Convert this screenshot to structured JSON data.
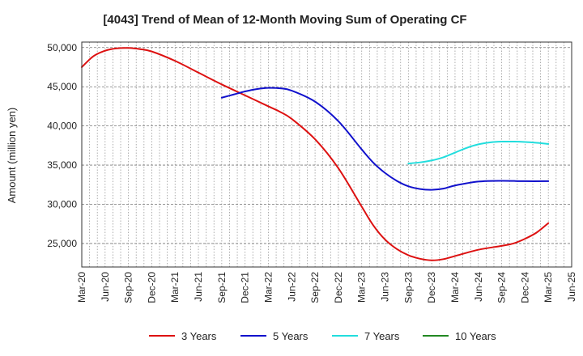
{
  "chart_data": {
    "type": "line",
    "title": "[4043]  Trend of Mean of 12-Month Moving Sum of Operating CF",
    "xlabel": "",
    "ylabel": "Amount (million yen)",
    "ylim": [
      22000,
      50700
    ],
    "yticks": [
      25000,
      30000,
      35000,
      40000,
      45000,
      50000
    ],
    "ytick_labels": [
      "25,000",
      "30,000",
      "35,000",
      "40,000",
      "45,000",
      "50,000"
    ],
    "xtick_labels": [
      "Mar-20",
      "Jun-20",
      "Sep-20",
      "Dec-20",
      "Mar-21",
      "Jun-21",
      "Sep-21",
      "Dec-21",
      "Mar-22",
      "Jun-22",
      "Sep-22",
      "Dec-22",
      "Mar-23",
      "Jun-23",
      "Sep-23",
      "Dec-23",
      "Mar-24",
      "Jun-24",
      "Sep-24",
      "Dec-24",
      "Mar-25",
      "Jun-25"
    ],
    "x_unit": "quarter index (0 = Mar-20)",
    "grid": true,
    "legend_position": "bottom",
    "series": [
      {
        "name": "3 Years",
        "color": "#dd1111",
        "points": [
          [
            0,
            47500
          ],
          [
            0.5,
            48900
          ],
          [
            1,
            49600
          ],
          [
            1.5,
            49900
          ],
          [
            2,
            49950
          ],
          [
            2.5,
            49800
          ],
          [
            3,
            49500
          ],
          [
            4,
            48300
          ],
          [
            5,
            46800
          ],
          [
            6,
            45300
          ],
          [
            7,
            43900
          ],
          [
            8,
            42500
          ],
          [
            8.5,
            41800
          ],
          [
            9,
            40900
          ],
          [
            10,
            38300
          ],
          [
            11,
            34600
          ],
          [
            12,
            29700
          ],
          [
            12.5,
            27300
          ],
          [
            13,
            25500
          ],
          [
            13.5,
            24300
          ],
          [
            14,
            23500
          ],
          [
            14.5,
            23050
          ],
          [
            15,
            22850
          ],
          [
            15.5,
            23000
          ],
          [
            16,
            23400
          ],
          [
            17,
            24200
          ],
          [
            18,
            24700
          ],
          [
            18.5,
            25000
          ],
          [
            19,
            25600
          ],
          [
            19.5,
            26400
          ],
          [
            20,
            27600
          ]
        ]
      },
      {
        "name": "5 Years",
        "color": "#1111cc",
        "points": [
          [
            6,
            43600
          ],
          [
            6.5,
            44000
          ],
          [
            7,
            44400
          ],
          [
            7.5,
            44700
          ],
          [
            8,
            44850
          ],
          [
            8.5,
            44800
          ],
          [
            9,
            44500
          ],
          [
            10,
            43100
          ],
          [
            11,
            40600
          ],
          [
            12,
            37000
          ],
          [
            12.5,
            35300
          ],
          [
            13,
            34000
          ],
          [
            13.5,
            33000
          ],
          [
            14,
            32300
          ],
          [
            14.5,
            31950
          ],
          [
            15,
            31850
          ],
          [
            15.5,
            32000
          ],
          [
            16,
            32400
          ],
          [
            17,
            32900
          ],
          [
            18,
            33000
          ],
          [
            19,
            32950
          ],
          [
            20,
            32950
          ]
        ]
      },
      {
        "name": "7 Years",
        "color": "#22dddd",
        "points": [
          [
            14,
            35200
          ],
          [
            14.5,
            35350
          ],
          [
            15,
            35600
          ],
          [
            15.5,
            36000
          ],
          [
            16,
            36600
          ],
          [
            16.5,
            37200
          ],
          [
            17,
            37650
          ],
          [
            17.5,
            37900
          ],
          [
            18,
            38000
          ],
          [
            18.5,
            38000
          ],
          [
            19,
            37950
          ],
          [
            19.5,
            37850
          ],
          [
            20,
            37700
          ]
        ]
      },
      {
        "name": "10 Years",
        "color": "#228822",
        "points": []
      }
    ]
  }
}
